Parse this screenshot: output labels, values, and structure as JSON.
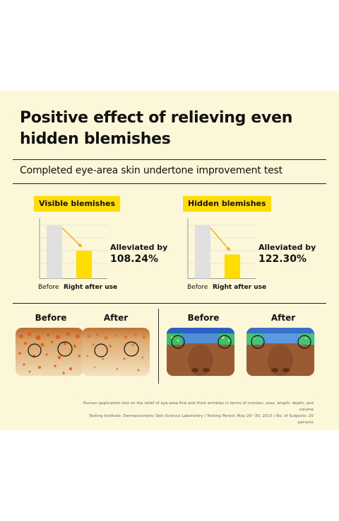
{
  "header": {
    "title_line1": "Positive effect of relieving even",
    "title_line2": "hidden blemishes",
    "subtitle": "Completed eye-area skin undertone improvement test"
  },
  "colors": {
    "panel_bg": "#fdf7d9",
    "accent": "#ffdd00",
    "bar_before": "#e0e0e0",
    "bar_after": "#ffdd00",
    "arrow": "#f2a800"
  },
  "chart_data": [
    {
      "type": "bar",
      "title": "Visible blemishes",
      "categories": [
        "Before",
        "Right after use"
      ],
      "values": [
        100,
        52
      ],
      "annotation": {
        "label": "Alleviated by",
        "value": "108.24%"
      }
    },
    {
      "type": "bar",
      "title": "Hidden blemishes",
      "categories": [
        "Before",
        "Right after use"
      ],
      "values": [
        100,
        45
      ],
      "annotation": {
        "label": "Alleviated by",
        "value": "122.30%"
      }
    }
  ],
  "photos": {
    "left_before": "Before",
    "left_after": "After",
    "right_before": "Before",
    "right_after": "After"
  },
  "footnote": {
    "line1": "Human application test on the relief of eye-area fine and thick wrinkles in terms of number, area, length, depth, and volume",
    "line2": "Testing Institute: Dermacosmetic Skin Science Laboratory / Testing Period: May 26~30, 2023 / No. of Subjects: 20 persons"
  }
}
